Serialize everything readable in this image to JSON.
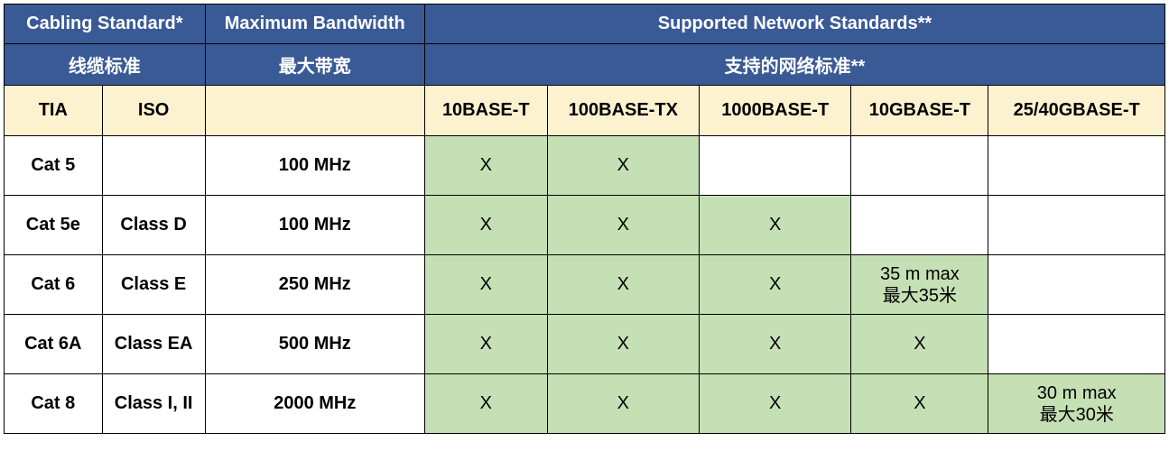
{
  "colors": {
    "header_blue_bg": "#3a5a96",
    "header_blue_text": "#ffffff",
    "header_cream_bg": "#fdf2cf",
    "supported_bg": "#c5e0b4",
    "border": "#000000",
    "body_bg": "#ffffff"
  },
  "header_row1": {
    "cabling_standard": "Cabling Standard*",
    "max_bandwidth": "Maximum Bandwidth",
    "supported_networks": "Supported Network Standards**"
  },
  "header_row2": {
    "cabling_standard_cn": "线缆标准",
    "max_bandwidth_cn": "最大带宽",
    "supported_networks_cn": "支持的网络标准**"
  },
  "header_row3": {
    "tia": "TIA",
    "iso": "ISO",
    "bw": "",
    "net1": "10BASE-T",
    "net2": "100BASE-TX",
    "net3": "1000BASE-T",
    "net4": "10GBASE-T",
    "net5": "25/40GBASE-T"
  },
  "rows": [
    {
      "tia": "Cat 5",
      "iso": "",
      "bw": "100 MHz",
      "cells": [
        {
          "text": "X",
          "supported": true
        },
        {
          "text": "X",
          "supported": true
        },
        {
          "text": "",
          "supported": false
        },
        {
          "text": "",
          "supported": false
        },
        {
          "text": "",
          "supported": false
        }
      ]
    },
    {
      "tia": "Cat 5e",
      "iso": "Class D",
      "bw": "100 MHz",
      "cells": [
        {
          "text": "X",
          "supported": true
        },
        {
          "text": "X",
          "supported": true
        },
        {
          "text": "X",
          "supported": true
        },
        {
          "text": "",
          "supported": false
        },
        {
          "text": "",
          "supported": false
        }
      ]
    },
    {
      "tia": "Cat 6",
      "iso": "Class E",
      "bw": "250 MHz",
      "cells": [
        {
          "text": "X",
          "supported": true
        },
        {
          "text": "X",
          "supported": true
        },
        {
          "text": "X",
          "supported": true
        },
        {
          "text": "35 m max\n最大35米",
          "supported": true
        },
        {
          "text": "",
          "supported": false
        }
      ]
    },
    {
      "tia": "Cat 6A",
      "iso": "Class EA",
      "bw": "500 MHz",
      "cells": [
        {
          "text": "X",
          "supported": true
        },
        {
          "text": "X",
          "supported": true
        },
        {
          "text": "X",
          "supported": true
        },
        {
          "text": "X",
          "supported": true
        },
        {
          "text": "",
          "supported": false
        }
      ]
    },
    {
      "tia": "Cat 8",
      "iso": "Class I, II",
      "bw": "2000 MHz",
      "cells": [
        {
          "text": "X",
          "supported": true
        },
        {
          "text": "X",
          "supported": true
        },
        {
          "text": "X",
          "supported": true
        },
        {
          "text": "X",
          "supported": true
        },
        {
          "text": "30 m max\n最大30米",
          "supported": true
        }
      ]
    }
  ]
}
